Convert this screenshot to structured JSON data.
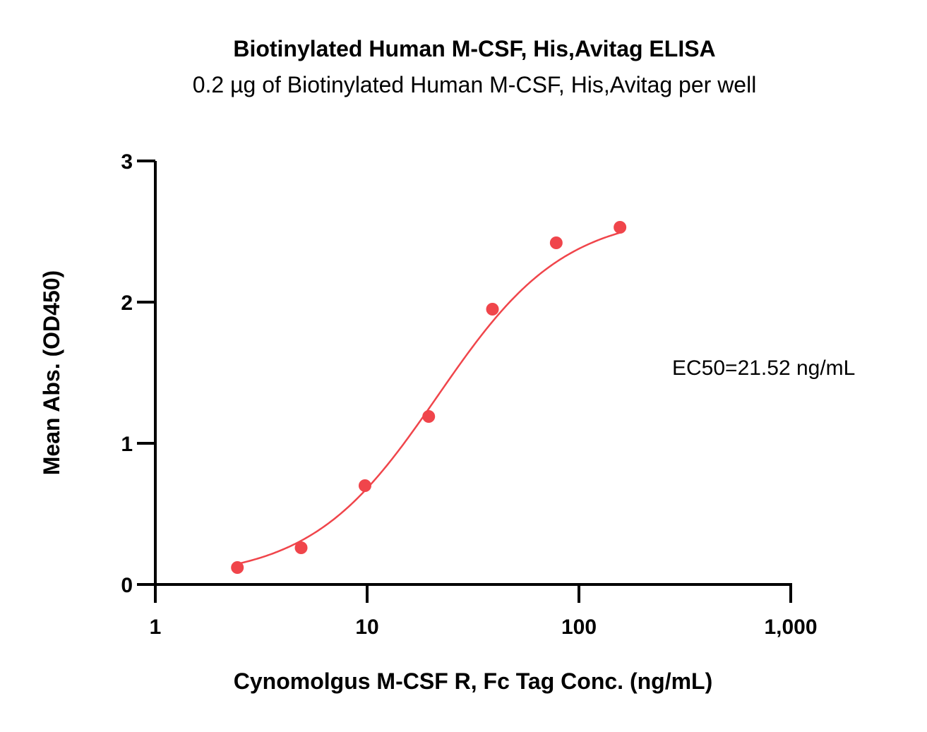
{
  "chart_data": {
    "type": "scatter",
    "title": "Biotinylated Human M-CSF, His,Avitag ELISA",
    "subtitle": "0.2 µg of Biotinylated Human M-CSF, His,Avitag per well",
    "xlabel": "Cynomolgus M-CSF R, Fc Tag Conc. (ng/mL)",
    "ylabel": "Mean Abs. (OD450)",
    "x_scale": "log",
    "xlim": [
      1,
      1000
    ],
    "ylim": [
      0,
      3
    ],
    "x_ticks": [
      {
        "value": 1,
        "label": "1"
      },
      {
        "value": 10,
        "label": "10"
      },
      {
        "value": 100,
        "label": "100"
      },
      {
        "value": 1000,
        "label": "1,000"
      }
    ],
    "y_ticks": [
      {
        "value": 0,
        "label": "0"
      },
      {
        "value": 1,
        "label": "1"
      },
      {
        "value": 2,
        "label": "2"
      },
      {
        "value": 3,
        "label": "3"
      }
    ],
    "grid": false,
    "legend": "none",
    "series": [
      {
        "x": [
          2.44,
          4.88,
          9.77,
          19.53,
          39.06,
          78.13,
          156.25
        ],
        "y": [
          0.12,
          0.26,
          0.7,
          1.19,
          1.95,
          2.42,
          2.53
        ],
        "color": "#f0454b",
        "fit": "4PL",
        "fit_params": {
          "bottom": 0.04,
          "top": 2.63,
          "ec50": 21.52,
          "hill": 1.45
        }
      }
    ],
    "annotations": [
      {
        "text": "EC50=21.52 ng/mL"
      }
    ]
  }
}
